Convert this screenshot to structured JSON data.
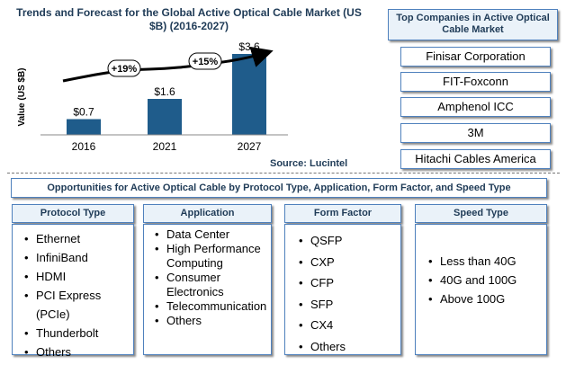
{
  "chart_data": {
    "type": "bar",
    "title": "Trends and Forecast for the Global Active Optical Cable Market (US $B) (2016-2027)",
    "ylabel": "Value (US $B)",
    "categories": [
      "2016",
      "2021",
      "2027"
    ],
    "values": [
      0.7,
      1.6,
      3.6
    ],
    "value_labels": [
      "$0.7",
      "$1.6",
      "$3.6"
    ],
    "growth_labels": [
      "+19%",
      "+15%"
    ],
    "bar_color": "#1F5C8B",
    "ylim": [
      0,
      4
    ],
    "source": "Source: Lucintel"
  },
  "companies": {
    "title": "Top Companies in Active Optical Cable Market",
    "items": [
      "Finisar Corporation",
      "FIT-Foxconn",
      "Amphenol ICC",
      "3M",
      "Hitachi Cables America"
    ]
  },
  "opportunities": {
    "title": "Opportunities for Active Optical Cable by Protocol Type, Application, Form Factor, and Speed Type",
    "categories": [
      {
        "header": "Protocol Type",
        "items": [
          "Ethernet",
          "InfiniBand",
          "HDMI",
          "PCI Express",
          "(PCIe)",
          "Thunderbolt",
          "Others"
        ]
      },
      {
        "header": "Application",
        "items": [
          "Data Center",
          "High Performance",
          "Computing",
          "Consumer",
          "Electronics",
          "Telecommunication",
          "Others"
        ]
      },
      {
        "header": "Form Factor",
        "items": [
          "QSFP",
          "CXP",
          "CFP",
          "SFP",
          "CX4",
          "Others"
        ]
      },
      {
        "header": "Speed Type",
        "items": [
          "Less than 40G",
          "40G and 100G",
          "Above 100G"
        ]
      }
    ]
  }
}
